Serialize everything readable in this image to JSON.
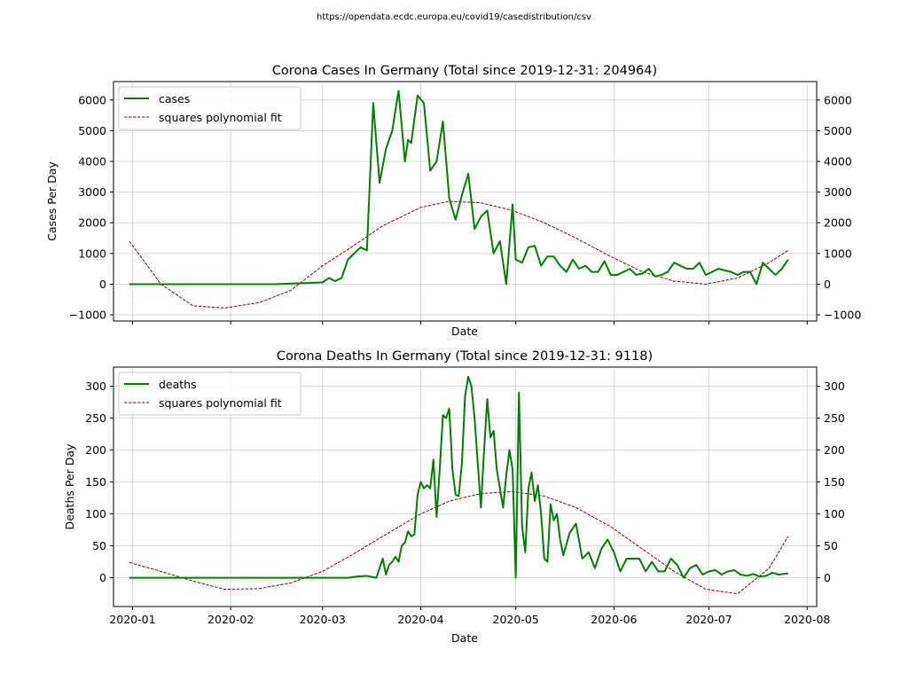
{
  "source_url": "https://opendata.ecdc.europa.eu/covid19/casedistribution/csv",
  "colors": {
    "data_line": "#008000",
    "fit_line": "#8b0000",
    "grid": "#b0b0b0"
  },
  "chart_data": [
    {
      "type": "line",
      "title": "Corona Cases In Germany (Total since 2019-12-31: 204964)",
      "xlabel": "Date",
      "ylabel": "Cases Per Day",
      "ylim": [
        -1200,
        6600
      ],
      "yticks": [
        -1000,
        0,
        1000,
        2000,
        3000,
        4000,
        5000,
        6000
      ],
      "xticks": [
        "2020-01",
        "2020-02",
        "2020-03",
        "2020-04",
        "2020-05",
        "2020-06",
        "2020-07",
        "2020-08"
      ],
      "xtick_dates": [
        "2020-01-01",
        "2020-02-01",
        "2020-03-01",
        "2020-04-01",
        "2020-05-01",
        "2020-06-01",
        "2020-07-01",
        "2020-08-01"
      ],
      "show_xtick_labels": false,
      "grid": true,
      "legend_position": "top-left",
      "series": [
        {
          "name": "cases",
          "style": "solid",
          "x": [
            "2019-12-31",
            "2020-02-15",
            "2020-02-28",
            "2020-03-01",
            "2020-03-03",
            "2020-03-05",
            "2020-03-07",
            "2020-03-09",
            "2020-03-11",
            "2020-03-13",
            "2020-03-15",
            "2020-03-17",
            "2020-03-19",
            "2020-03-21",
            "2020-03-23",
            "2020-03-25",
            "2020-03-27",
            "2020-03-28",
            "2020-03-29",
            "2020-03-31",
            "2020-04-02",
            "2020-04-04",
            "2020-04-06",
            "2020-04-08",
            "2020-04-10",
            "2020-04-12",
            "2020-04-14",
            "2020-04-16",
            "2020-04-18",
            "2020-04-20",
            "2020-04-22",
            "2020-04-24",
            "2020-04-26",
            "2020-04-28",
            "2020-04-30",
            "2020-05-01",
            "2020-05-03",
            "2020-05-05",
            "2020-05-07",
            "2020-05-09",
            "2020-05-11",
            "2020-05-13",
            "2020-05-15",
            "2020-05-17",
            "2020-05-19",
            "2020-05-21",
            "2020-05-23",
            "2020-05-25",
            "2020-05-27",
            "2020-05-29",
            "2020-05-31",
            "2020-06-02",
            "2020-06-04",
            "2020-06-06",
            "2020-06-08",
            "2020-06-10",
            "2020-06-12",
            "2020-06-14",
            "2020-06-16",
            "2020-06-18",
            "2020-06-20",
            "2020-06-22",
            "2020-06-24",
            "2020-06-26",
            "2020-06-28",
            "2020-06-30",
            "2020-07-02",
            "2020-07-04",
            "2020-07-06",
            "2020-07-08",
            "2020-07-10",
            "2020-07-12",
            "2020-07-14",
            "2020-07-16",
            "2020-07-18",
            "2020-07-20",
            "2020-07-22",
            "2020-07-24",
            "2020-07-26"
          ],
          "y": [
            0,
            0,
            50,
            60,
            200,
            100,
            200,
            800,
            1000,
            1200,
            1100,
            5900,
            3300,
            4400,
            5000,
            6300,
            4000,
            4700,
            4600,
            6150,
            5900,
            3700,
            4000,
            5300,
            2800,
            2100,
            2900,
            3600,
            1800,
            2200,
            2400,
            1000,
            1400,
            0,
            2600,
            800,
            700,
            1200,
            1250,
            600,
            900,
            900,
            600,
            400,
            800,
            500,
            600,
            400,
            400,
            750,
            300,
            300,
            400,
            500,
            300,
            350,
            500,
            250,
            300,
            400,
            700,
            600,
            500,
            500,
            700,
            300,
            400,
            500,
            450,
            400,
            300,
            400,
            400,
            0,
            700,
            500,
            300,
            500,
            800
          ]
        },
        {
          "name": "squares polynomial fit",
          "style": "dashed",
          "x": [
            "2019-12-31",
            "2020-01-10",
            "2020-01-20",
            "2020-01-30",
            "2020-02-10",
            "2020-02-20",
            "2020-03-01",
            "2020-03-10",
            "2020-03-20",
            "2020-04-01",
            "2020-04-10",
            "2020-04-20",
            "2020-04-30",
            "2020-05-10",
            "2020-05-20",
            "2020-05-31",
            "2020-06-10",
            "2020-06-20",
            "2020-06-30",
            "2020-07-10",
            "2020-07-20",
            "2020-07-26"
          ],
          "y": [
            1400,
            0,
            -700,
            -780,
            -600,
            -200,
            600,
            1200,
            1900,
            2500,
            2700,
            2650,
            2400,
            2000,
            1500,
            900,
            400,
            100,
            0,
            200,
            700,
            1100
          ]
        }
      ]
    },
    {
      "type": "line",
      "title": "Corona Deaths In Germany (Total since 2019-12-31: 9118)",
      "xlabel": "Date",
      "ylabel": "Deaths Per Day",
      "ylim": [
        -45,
        330
      ],
      "yticks": [
        0,
        50,
        100,
        150,
        200,
        250,
        300
      ],
      "xticks": [
        "2020-01",
        "2020-02",
        "2020-03",
        "2020-04",
        "2020-05",
        "2020-06",
        "2020-07",
        "2020-08"
      ],
      "xtick_dates": [
        "2020-01-01",
        "2020-02-01",
        "2020-03-01",
        "2020-04-01",
        "2020-05-01",
        "2020-06-01",
        "2020-07-01",
        "2020-08-01"
      ],
      "show_xtick_labels": true,
      "grid": true,
      "legend_position": "top-left",
      "series": [
        {
          "name": "deaths",
          "style": "solid",
          "x": [
            "2019-12-31",
            "2020-03-09",
            "2020-03-12",
            "2020-03-15",
            "2020-03-18",
            "2020-03-20",
            "2020-03-21",
            "2020-03-22",
            "2020-03-23",
            "2020-03-24",
            "2020-03-25",
            "2020-03-26",
            "2020-03-27",
            "2020-03-28",
            "2020-03-29",
            "2020-03-30",
            "2020-03-31",
            "2020-04-01",
            "2020-04-02",
            "2020-04-03",
            "2020-04-04",
            "2020-04-05",
            "2020-04-06",
            "2020-04-07",
            "2020-04-08",
            "2020-04-09",
            "2020-04-10",
            "2020-04-11",
            "2020-04-12",
            "2020-04-13",
            "2020-04-14",
            "2020-04-15",
            "2020-04-16",
            "2020-04-17",
            "2020-04-18",
            "2020-04-19",
            "2020-04-20",
            "2020-04-21",
            "2020-04-22",
            "2020-04-23",
            "2020-04-24",
            "2020-04-25",
            "2020-04-26",
            "2020-04-27",
            "2020-04-28",
            "2020-04-29",
            "2020-04-30",
            "2020-05-01",
            "2020-05-02",
            "2020-05-03",
            "2020-05-04",
            "2020-05-05",
            "2020-05-06",
            "2020-05-07",
            "2020-05-08",
            "2020-05-09",
            "2020-05-10",
            "2020-05-11",
            "2020-05-12",
            "2020-05-13",
            "2020-05-14",
            "2020-05-15",
            "2020-05-16",
            "2020-05-18",
            "2020-05-20",
            "2020-05-22",
            "2020-05-24",
            "2020-05-26",
            "2020-05-28",
            "2020-05-30",
            "2020-06-01",
            "2020-06-03",
            "2020-06-05",
            "2020-06-07",
            "2020-06-09",
            "2020-06-11",
            "2020-06-13",
            "2020-06-15",
            "2020-06-17",
            "2020-06-19",
            "2020-06-21",
            "2020-06-23",
            "2020-06-25",
            "2020-06-27",
            "2020-06-29",
            "2020-07-01",
            "2020-07-03",
            "2020-07-05",
            "2020-07-07",
            "2020-07-09",
            "2020-07-11",
            "2020-07-13",
            "2020-07-15",
            "2020-07-17",
            "2020-07-19",
            "2020-07-21",
            "2020-07-23",
            "2020-07-26"
          ],
          "y": [
            0,
            0,
            2,
            3,
            0,
            30,
            5,
            20,
            25,
            33,
            25,
            50,
            55,
            73,
            65,
            68,
            130,
            150,
            140,
            145,
            140,
            185,
            95,
            170,
            255,
            250,
            265,
            170,
            130,
            128,
            180,
            285,
            315,
            300,
            250,
            180,
            110,
            200,
            280,
            220,
            230,
            170,
            140,
            110,
            160,
            200,
            170,
            0,
            290,
            80,
            40,
            140,
            165,
            120,
            145,
            100,
            30,
            25,
            115,
            90,
            100,
            60,
            35,
            70,
            85,
            30,
            40,
            15,
            45,
            60,
            40,
            10,
            30,
            30,
            30,
            10,
            25,
            10,
            10,
            30,
            20,
            0,
            15,
            20,
            5,
            10,
            12,
            5,
            10,
            12,
            5,
            3,
            6,
            2,
            3,
            8,
            5,
            7
          ]
        },
        {
          "name": "squares polynomial fit",
          "style": "dashed",
          "x": [
            "2019-12-31",
            "2020-01-10",
            "2020-01-20",
            "2020-01-30",
            "2020-02-10",
            "2020-02-20",
            "2020-03-01",
            "2020-03-10",
            "2020-03-20",
            "2020-04-01",
            "2020-04-10",
            "2020-04-20",
            "2020-04-30",
            "2020-05-10",
            "2020-05-20",
            "2020-05-31",
            "2020-06-10",
            "2020-06-20",
            "2020-06-30",
            "2020-07-10",
            "2020-07-20",
            "2020-07-26"
          ],
          "y": [
            24,
            10,
            -5,
            -18,
            -17,
            -8,
            10,
            35,
            65,
            100,
            120,
            132,
            135,
            128,
            110,
            80,
            45,
            10,
            -18,
            -25,
            15,
            65
          ]
        }
      ]
    }
  ]
}
